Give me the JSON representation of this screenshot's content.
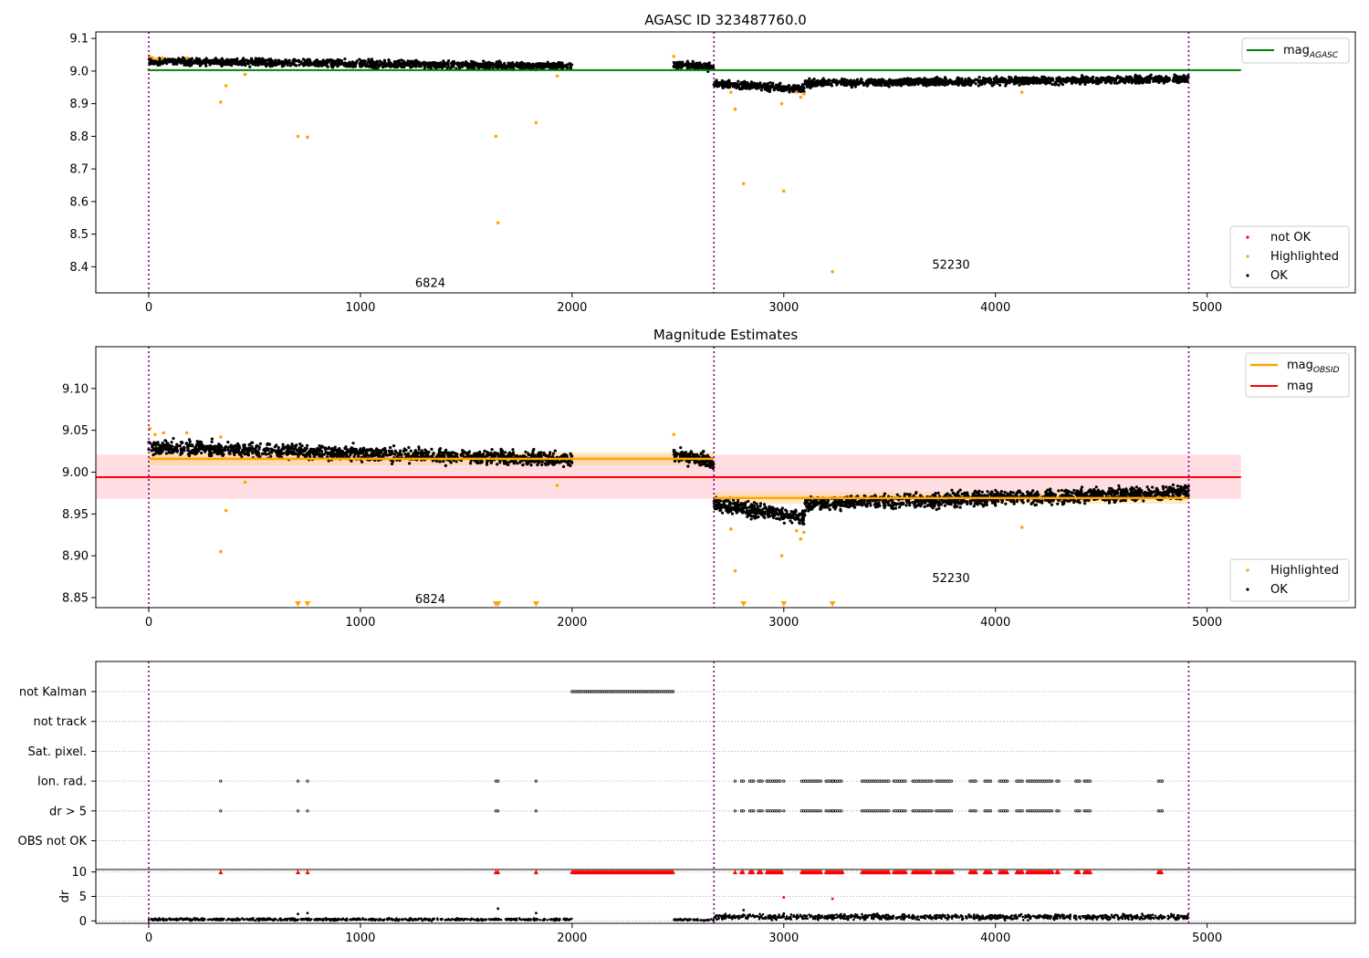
{
  "chart_data": [
    {
      "type": "scatter",
      "title": "AGASC ID 323487760.0",
      "xlim": [
        -250,
        5700
      ],
      "ylim": [
        8.32,
        9.12
      ],
      "xticks": [
        0,
        1000,
        2000,
        3000,
        4000,
        5000
      ],
      "yticks": [
        8.4,
        8.5,
        8.6,
        8.7,
        8.8,
        8.9,
        9.0,
        9.1
      ],
      "obsid_boundaries": [
        0,
        2670,
        4913
      ],
      "obsid_labels": [
        {
          "text": "6824",
          "x": 1330,
          "y": 8.35
        },
        {
          "text": "52230",
          "x": 3790,
          "y": 8.405
        }
      ],
      "series": [
        {
          "name": "mag_AGASC",
          "kind": "hline",
          "y": 9.003,
          "x_range": [
            -5,
            5160
          ],
          "color": "#008000"
        },
        {
          "name": "OK",
          "kind": "band_scatter",
          "color": "#000000",
          "segments": [
            {
              "x": [
                0,
                2000
              ],
              "y_start": 9.03,
              "y_end": 9.015,
              "scatter": 0.012,
              "n": 1300
            },
            {
              "x": [
                2480,
                2670
              ],
              "y_start": 9.02,
              "y_end": 9.012,
              "scatter": 0.012,
              "n": 150
            },
            {
              "x": [
                2670,
                3100
              ],
              "y_start": 8.962,
              "y_end": 8.945,
              "scatter": 0.012,
              "n": 320
            },
            {
              "x": [
                3100,
                4913
              ],
              "y_start": 8.962,
              "y_end": 8.976,
              "scatter": 0.012,
              "n": 1300
            }
          ]
        },
        {
          "name": "Highlighted",
          "kind": "points",
          "color": "#ffa500",
          "points": [
            [
              5,
              9.045
            ],
            [
              20,
              9.04
            ],
            [
              40,
              9.037
            ],
            [
              65,
              9.04
            ],
            [
              180,
              9.04
            ],
            [
              340,
              8.905
            ],
            [
              365,
              8.955
            ],
            [
              455,
              8.99
            ],
            [
              705,
              8.8
            ],
            [
              750,
              8.797
            ],
            [
              1640,
              8.8
            ],
            [
              1650,
              8.535
            ],
            [
              1830,
              8.842
            ],
            [
              1930,
              8.985
            ],
            [
              2480,
              9.045
            ],
            [
              2750,
              8.935
            ],
            [
              2770,
              8.883
            ],
            [
              2810,
              8.655
            ],
            [
              2990,
              8.9
            ],
            [
              3000,
              8.632
            ],
            [
              3060,
              8.935
            ],
            [
              3080,
              8.92
            ],
            [
              3095,
              8.93
            ],
            [
              3230,
              8.385
            ],
            [
              4125,
              8.935
            ]
          ]
        },
        {
          "name": "not OK",
          "kind": "points",
          "color": "#ff0000",
          "points": []
        }
      ],
      "legends": [
        {
          "entries": [
            "mag_AGASC"
          ],
          "placement": "top-right"
        },
        {
          "entries": [
            "not OK",
            "Highlighted",
            "OK"
          ],
          "placement": "lower-right"
        }
      ]
    },
    {
      "type": "scatter",
      "title": "Magnitude Estimates",
      "xlim": [
        -250,
        5700
      ],
      "ylim": [
        8.838,
        9.15
      ],
      "xticks": [
        0,
        1000,
        2000,
        3000,
        4000,
        5000
      ],
      "yticks": [
        8.85,
        8.9,
        8.95,
        9.0,
        9.05,
        9.1
      ],
      "ytick_labels": [
        "8.85",
        "8.90",
        "8.95",
        "9.00",
        "9.05",
        "9.10"
      ],
      "obsid_boundaries": [
        0,
        2670,
        4913
      ],
      "obsid_labels": [
        {
          "text": "6824",
          "x": 1330,
          "y": 8.848
        },
        {
          "text": "52230",
          "x": 3790,
          "y": 8.873
        }
      ],
      "bands": [
        {
          "name": "mag range",
          "x_range": [
            -250,
            5160
          ],
          "y_range": [
            8.968,
            9.021
          ],
          "color": "#ffb6c1",
          "alpha": 0.45
        },
        {
          "name": "obsid 6824 range",
          "x_range": [
            0,
            2670
          ],
          "y_range": [
            9.008,
            9.024
          ],
          "color": "#ffd27f",
          "alpha": 0.45
        },
        {
          "name": "obsid 52230 range",
          "x_range": [
            2670,
            4913
          ],
          "y_range": [
            8.962,
            8.976
          ],
          "color": "#ffd27f",
          "alpha": 0.45
        }
      ],
      "series": [
        {
          "name": "mag_OBSID",
          "kind": "segments",
          "color": "#ffa500",
          "segments": [
            {
              "x": [
                0,
                2670
              ],
              "y": 9.016
            },
            {
              "x": [
                2670,
                4913
              ],
              "y": 8.969
            }
          ]
        },
        {
          "name": "mag",
          "kind": "hline",
          "y": 8.994,
          "x_range": [
            -250,
            5160
          ],
          "color": "#ff0000"
        },
        {
          "name": "OK",
          "kind": "band_scatter",
          "color": "#000000",
          "segments": [
            {
              "x": [
                0,
                2000
              ],
              "y_start": 9.03,
              "y_end": 9.015,
              "scatter": 0.009,
              "n": 1300
            },
            {
              "x": [
                2480,
                2670
              ],
              "y_start": 9.02,
              "y_end": 9.012,
              "scatter": 0.009,
              "n": 150
            },
            {
              "x": [
                2670,
                3100
              ],
              "y_start": 8.962,
              "y_end": 8.945,
              "scatter": 0.009,
              "n": 320
            },
            {
              "x": [
                3100,
                4913
              ],
              "y_start": 8.962,
              "y_end": 8.976,
              "scatter": 0.009,
              "n": 1300
            }
          ]
        },
        {
          "name": "Highlighted",
          "kind": "points",
          "color": "#ffa500",
          "points": [
            [
              5,
              9.052
            ],
            [
              30,
              9.045
            ],
            [
              70,
              9.047
            ],
            [
              180,
              9.047
            ],
            [
              340,
              9.042
            ],
            [
              340,
              8.905
            ],
            [
              365,
              8.954
            ],
            [
              455,
              8.988
            ],
            [
              1930,
              8.984
            ],
            [
              2480,
              9.045
            ],
            [
              2750,
              8.932
            ],
            [
              2770,
              8.882
            ],
            [
              2990,
              8.9
            ],
            [
              3060,
              8.93
            ],
            [
              3080,
              8.92
            ],
            [
              3095,
              8.928
            ],
            [
              4125,
              8.934
            ]
          ]
        },
        {
          "name": "Highlighted below range",
          "kind": "markers",
          "marker": "triangle-down",
          "color": "#ffa500",
          "x": [
            705,
            750,
            1640,
            1650,
            1830,
            2810,
            3000,
            3230
          ]
        }
      ],
      "legends": [
        {
          "entries": [
            "mag_OBSID",
            "mag"
          ],
          "placement": "top-right"
        },
        {
          "entries": [
            "Highlighted",
            "OK"
          ],
          "placement": "lower-right"
        }
      ]
    },
    {
      "type": "scatter",
      "title": "",
      "xlim": [
        -250,
        5700
      ],
      "xticks": [
        0,
        1000,
        2000,
        3000,
        4000,
        5000
      ],
      "obsid_boundaries": [
        0,
        2670,
        4913
      ],
      "flag_rows": [
        "not Kalman",
        "not track",
        "Sat. pixel.",
        "Ion. rad.",
        "dr > 5",
        "OBS not OK"
      ],
      "flags": {
        "not Kalman": {
          "x_ranges": [
            [
              2000,
              2480
            ]
          ],
          "points": []
        },
        "not track": {
          "x_ranges": [],
          "points": []
        },
        "Sat. pixel.": {
          "x_ranges": [],
          "points": []
        },
        "Ion. rad.": {
          "x_ranges": [
            [
              2800,
              2810
            ],
            [
              2840,
              2860
            ],
            [
              2880,
              2900
            ],
            [
              2920,
              2990
            ],
            [
              3085,
              3180
            ],
            [
              3200,
              3280
            ],
            [
              3370,
              3500
            ],
            [
              3520,
              3580
            ],
            [
              3610,
              3700
            ],
            [
              3720,
              3800
            ],
            [
              3880,
              3910
            ],
            [
              3950,
              3980
            ],
            [
              4020,
              4060
            ],
            [
              4100,
              4130
            ],
            [
              4150,
              4270
            ],
            [
              4290,
              4300
            ],
            [
              4380,
              4400
            ],
            [
              4420,
              4450
            ],
            [
              4770,
              4790
            ]
          ],
          "points": [
            340,
            705,
            750,
            1640,
            1650,
            1830,
            2770,
            3000,
            3230
          ]
        },
        "dr > 5": {
          "x_ranges": [
            [
              2800,
              2810
            ],
            [
              2840,
              2860
            ],
            [
              2880,
              2900
            ],
            [
              2920,
              2990
            ],
            [
              3085,
              3180
            ],
            [
              3200,
              3280
            ],
            [
              3370,
              3500
            ],
            [
              3520,
              3580
            ],
            [
              3610,
              3700
            ],
            [
              3720,
              3800
            ],
            [
              3880,
              3910
            ],
            [
              3950,
              3980
            ],
            [
              4020,
              4060
            ],
            [
              4100,
              4130
            ],
            [
              4150,
              4270
            ],
            [
              4290,
              4300
            ],
            [
              4380,
              4400
            ],
            [
              4420,
              4450
            ],
            [
              4770,
              4790
            ]
          ],
          "points": [
            340,
            705,
            750,
            1640,
            1650,
            1830,
            2770,
            3000,
            3230
          ]
        },
        "OBS not OK": {
          "x_ranges": [],
          "points": []
        }
      },
      "dr_panel": {
        "ylabel": "dr",
        "ylim": [
          -0.5,
          10.5
        ],
        "yticks": [
          0,
          5,
          10
        ],
        "clip_marker": {
          "y": 10,
          "color": "#ff0000",
          "marker": "triangle-up",
          "x_ranges": [
            [
              2000,
              2480
            ],
            [
              2800,
              2810
            ],
            [
              2840,
              2860
            ],
            [
              2880,
              2900
            ],
            [
              2920,
              2990
            ],
            [
              3085,
              3180
            ],
            [
              3200,
              3280
            ],
            [
              3370,
              3500
            ],
            [
              3520,
              3580
            ],
            [
              3610,
              3700
            ],
            [
              3720,
              3800
            ],
            [
              3880,
              3910
            ],
            [
              3950,
              3980
            ],
            [
              4020,
              4060
            ],
            [
              4100,
              4130
            ],
            [
              4150,
              4270
            ],
            [
              4290,
              4300
            ],
            [
              4380,
              4400
            ],
            [
              4420,
              4450
            ],
            [
              4770,
              4790
            ]
          ],
          "points": [
            340,
            705,
            750,
            1640,
            1650,
            1830,
            2770
          ]
        },
        "red_points": [
          [
            3000,
            4.8
          ],
          [
            3230,
            4.5
          ]
        ],
        "black_points": [
          [
            705,
            1.4
          ],
          [
            750,
            1.6
          ],
          [
            1650,
            2.5
          ],
          [
            1830,
            1.6
          ],
          [
            2810,
            2.2
          ],
          [
            3000,
            1.5
          ]
        ],
        "baseline_segments": [
          {
            "x": [
              0,
              2000
            ],
            "mean": 0.3,
            "scatter": 0.2,
            "n": 600
          },
          {
            "x": [
              2480,
              2670
            ],
            "mean": 0.2,
            "scatter": 0.15,
            "n": 60
          },
          {
            "x": [
              2670,
              4913
            ],
            "mean": 0.8,
            "scatter": 0.45,
            "n": 900
          }
        ]
      }
    }
  ]
}
